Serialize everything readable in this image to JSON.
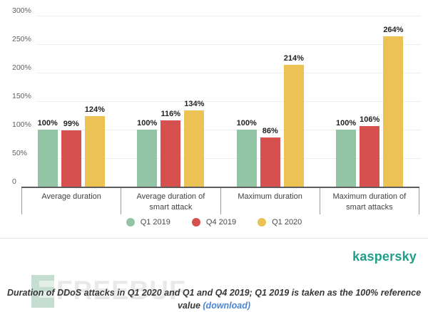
{
  "chart_data": {
    "type": "bar",
    "title": "",
    "categories": [
      "Average duration",
      "Average duration of smart attack",
      "Maximum duration",
      "Maximum duration of smart attacks"
    ],
    "series": [
      {
        "name": "Q1 2019",
        "color": "#93c4a5",
        "values": [
          100,
          100,
          100,
          100
        ]
      },
      {
        "name": "Q4 2019",
        "color": "#d65050",
        "values": [
          99,
          116,
          86,
          106
        ]
      },
      {
        "name": "Q1 2020",
        "color": "#edc254",
        "values": [
          124,
          134,
          214,
          264
        ]
      }
    ],
    "value_suffix": "%",
    "xlabel": "",
    "ylabel": "",
    "ylim": [
      0,
      300
    ],
    "yticks": [
      {
        "value": 300,
        "label": "300%"
      },
      {
        "value": 250,
        "label": "250%"
      },
      {
        "value": 200,
        "label": "200%"
      },
      {
        "value": 150,
        "label": "150%"
      },
      {
        "value": 100,
        "label": "100%"
      },
      {
        "value": 50,
        "label": "50%"
      },
      {
        "value": 0,
        "label": "0"
      }
    ],
    "grid": true,
    "legend_position": "bottom"
  },
  "branding": {
    "logo_text": "kaspersky",
    "logo_color": "#1f9e8a"
  },
  "watermark": {
    "text": "FREEBUF"
  },
  "caption": {
    "text": "Duration of DDoS attacks in Q1 2020 and Q1 and Q4 2019; Q1 2019 is taken as the 100% reference value ",
    "link_text": "(download)"
  }
}
